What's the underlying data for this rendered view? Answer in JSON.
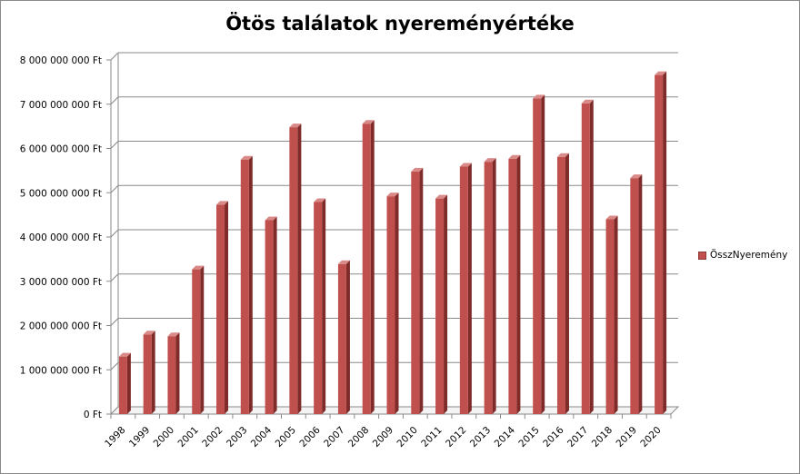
{
  "chart_data": {
    "type": "bar",
    "title": "Ötös találatok nyereményértéke",
    "categories": [
      "1998",
      "1999",
      "2000",
      "2001",
      "2002",
      "2003",
      "2004",
      "2005",
      "2006",
      "2007",
      "2008",
      "2009",
      "2010",
      "2011",
      "2012",
      "2013",
      "2014",
      "2015",
      "2016",
      "2017",
      "2018",
      "2019",
      "2020"
    ],
    "series": [
      {
        "name": "ÖsszNyeremény",
        "values": [
          1300000000,
          1800000000,
          1760000000,
          3270000000,
          4730000000,
          5750000000,
          4380000000,
          6480000000,
          4790000000,
          3390000000,
          6560000000,
          4920000000,
          5480000000,
          4870000000,
          5590000000,
          5700000000,
          5770000000,
          7130000000,
          5810000000,
          7020000000,
          4400000000,
          5330000000,
          7660000000
        ],
        "color": "#c0504d"
      }
    ],
    "ylim": [
      0,
      8000000000
    ],
    "yticks": [
      "0 Ft",
      "1 000 000 000 Ft",
      "2 000 000 000 Ft",
      "3 000 000 000 Ft",
      "4 000 000 000 Ft",
      "5 000 000 000 Ft",
      "6 000 000 000 Ft",
      "7 000 000 000 Ft",
      "8 000 000 000 Ft"
    ],
    "grid": true,
    "legend_position": "right"
  }
}
